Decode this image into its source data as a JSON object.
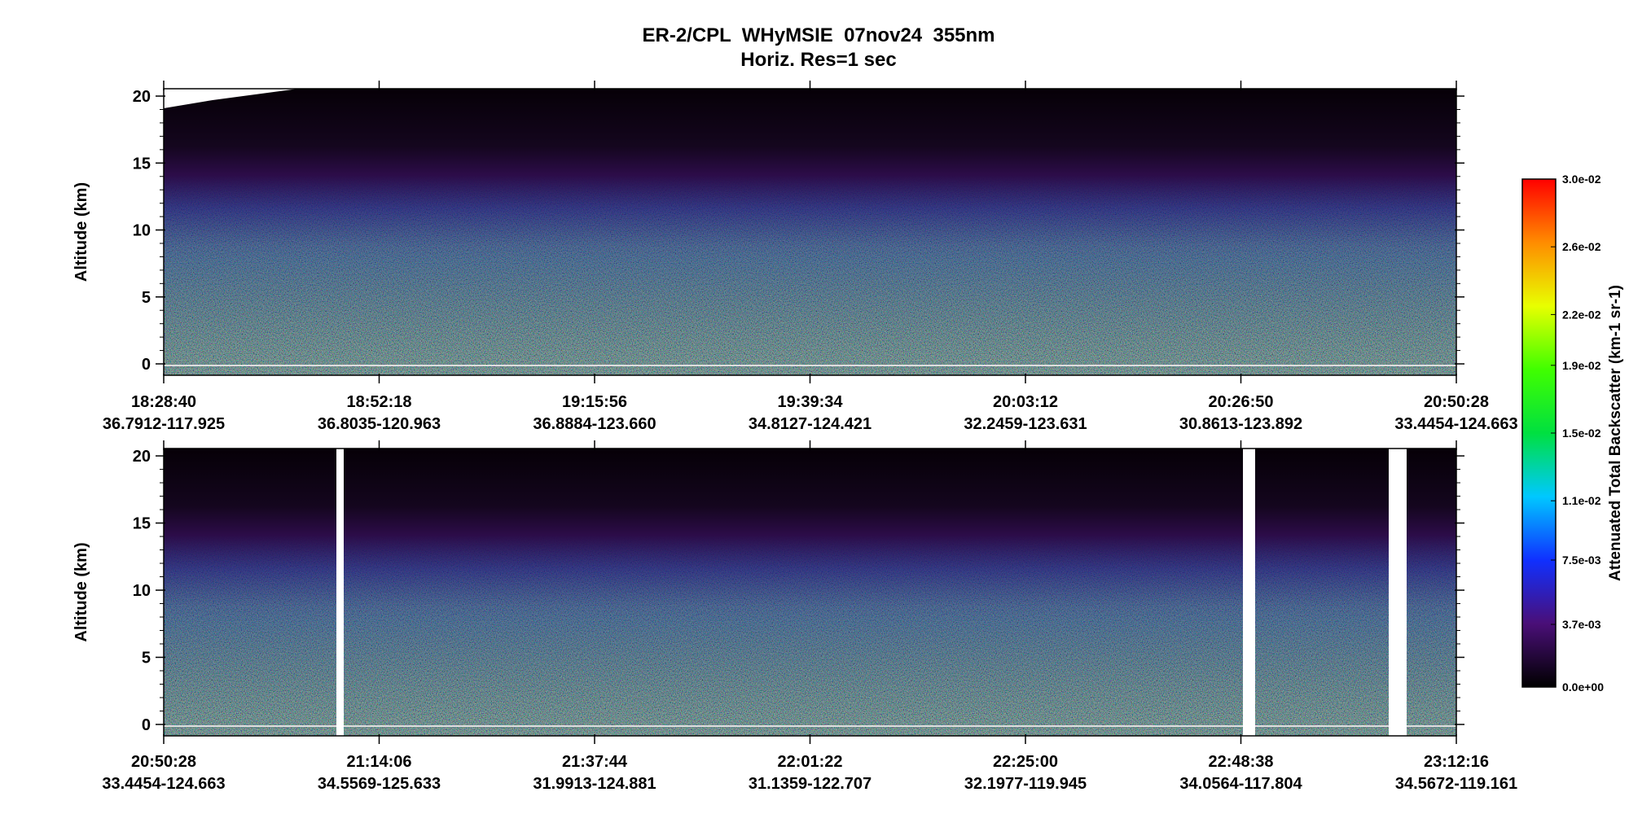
{
  "title": "ER-2/CPL  WHyMSIE  07nov24  355nm",
  "subtitle": "Horiz. Res=1 sec",
  "chart_data": [
    {
      "type": "curtain",
      "ylabel": "Altitude (km)",
      "ylim": [
        -0.85,
        20.55
      ],
      "yticks": [
        0,
        5,
        10,
        15,
        20
      ],
      "xtick_labels": [
        {
          "time": "18:28:40",
          "location": "36.7912-117.925"
        },
        {
          "time": "18:52:18",
          "location": "36.8035-120.963"
        },
        {
          "time": "19:15:56",
          "location": "36.8884-123.660"
        },
        {
          "time": "19:39:34",
          "location": "34.8127-124.421"
        },
        {
          "time": "20:03:12",
          "location": "32.2459-123.631"
        },
        {
          "time": "20:26:50",
          "location": "30.8613-123.892"
        },
        {
          "time": "20:50:28",
          "location": "33.4454-124.663"
        }
      ]
    },
    {
      "type": "curtain",
      "ylabel": "Altitude (km)",
      "ylim": [
        -0.85,
        20.55
      ],
      "yticks": [
        0,
        5,
        10,
        15,
        20
      ],
      "xtick_labels": [
        {
          "time": "20:50:28",
          "location": "33.4454-124.663"
        },
        {
          "time": "21:14:06",
          "location": "34.5569-125.633"
        },
        {
          "time": "21:37:44",
          "location": "31.9913-124.881"
        },
        {
          "time": "22:01:22",
          "location": "31.1359-122.707"
        },
        {
          "time": "22:25:00",
          "location": "32.1977-119.945"
        },
        {
          "time": "22:48:38",
          "location": "34.0564-117.804"
        },
        {
          "time": "23:12:16",
          "location": "34.5672-119.161"
        }
      ]
    }
  ],
  "colorbar": {
    "label": "Attenuated Total Backscatter (km-1 sr-1)",
    "lim": [
      0,
      0.03
    ],
    "colors": [
      "#000000",
      "#4a0f78",
      "#1030ff",
      "#00c8ff",
      "#00e040",
      "#40ff00",
      "#e8ff00",
      "#ff8c00",
      "#ff0000"
    ],
    "ticks": [
      {
        "value": 0,
        "label": "0.0e+00"
      },
      {
        "value": 0.0037,
        "label": "3.7e-03"
      },
      {
        "value": 0.0075,
        "label": "7.5e-03"
      },
      {
        "value": 0.011,
        "label": "1.1e-02"
      },
      {
        "value": 0.015,
        "label": "1.5e-02"
      },
      {
        "value": 0.019,
        "label": "1.9e-02"
      },
      {
        "value": 0.022,
        "label": "2.2e-02"
      },
      {
        "value": 0.026,
        "label": "2.6e-02"
      },
      {
        "value": 0.03,
        "label": "3.0e-02"
      }
    ]
  }
}
